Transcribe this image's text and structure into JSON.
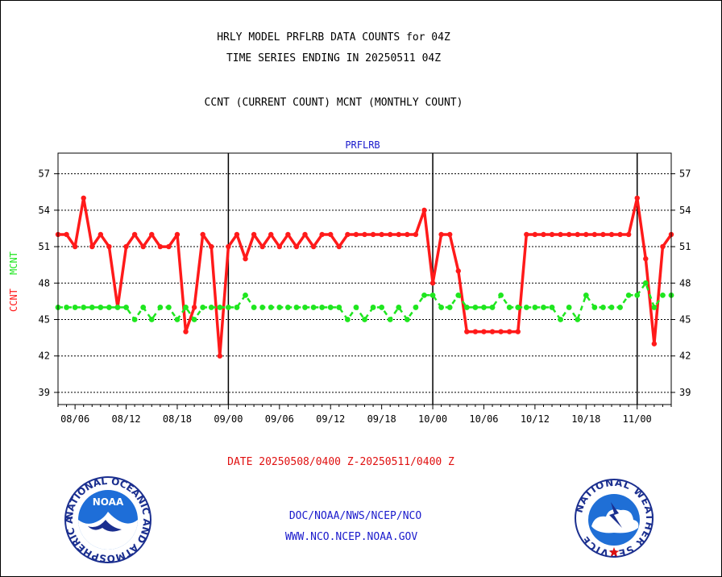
{
  "header": {
    "title_line1": "HRLY MODEL PRFLRB DATA COUNTS for 04Z",
    "title_line2": "TIME SERIES ENDING IN 20250511 04Z",
    "subtitle": "CCNT (CURRENT COUNT) MCNT (MONTHLY COUNT)"
  },
  "footer": {
    "date_range": "DATE 20250508/0400 Z-20250511/0400 Z",
    "org_line": "DOC/NOAA/NWS/NCEP/NCO",
    "url_line": "WWW.NCO.NCEP.NOAA.GOV"
  },
  "logos": {
    "noaa_text": "NOAA",
    "noaa_ring": "NATIONAL OCEANIC AND ATMOSPHERIC ADMINISTRATION · U.S. DEPARTMENT OF COMMERCE",
    "nws_ring": "NATIONAL WEATHER SERVICE"
  },
  "colors": {
    "ccnt": "#ff1a1a",
    "mcnt": "#1fe61f",
    "plot_label": "#1a1acc",
    "footer_red": "#e01010",
    "footer_blue": "#1a1acc"
  },
  "chart_data": {
    "type": "line",
    "title": "PRFLRB",
    "ylabel_ccnt": "CCNT",
    "ylabel_mcnt": "MCNT",
    "ylim": [
      38,
      58.7
    ],
    "yticks": [
      39,
      42,
      45,
      48,
      51,
      54,
      57
    ],
    "xlim": [
      0,
      72
    ],
    "xtick_labels": [
      "08/06",
      "08/12",
      "08/18",
      "09/00",
      "09/06",
      "09/12",
      "09/18",
      "10/00",
      "10/06",
      "10/12",
      "10/18",
      "11/00"
    ],
    "xtick_hours": [
      2,
      8,
      14,
      20,
      26,
      32,
      38,
      44,
      50,
      56,
      62,
      68
    ],
    "day_boundaries": [
      20,
      44,
      68
    ],
    "grid": true,
    "series": [
      {
        "name": "CCNT",
        "x": [
          0,
          1,
          2,
          3,
          4,
          5,
          6,
          7,
          8,
          9,
          10,
          11,
          12,
          13,
          14,
          15,
          16,
          17,
          18,
          19,
          20,
          21,
          22,
          23,
          24,
          25,
          26,
          27,
          28,
          29,
          30,
          31,
          32,
          33,
          34,
          35,
          36,
          37,
          38,
          39,
          40,
          41,
          42,
          43,
          44,
          45,
          46,
          47,
          48,
          49,
          50,
          51,
          52,
          53,
          54,
          55,
          56,
          57,
          58,
          59,
          60,
          61,
          62,
          63,
          64,
          65,
          66,
          67,
          68,
          69,
          70,
          71,
          72
        ],
        "values": [
          52,
          52,
          51,
          55,
          51,
          52,
          51,
          46,
          51,
          52,
          51,
          52,
          51,
          51,
          52,
          44,
          46,
          52,
          51,
          42,
          51,
          52,
          50,
          52,
          51,
          52,
          51,
          52,
          51,
          52,
          51,
          52,
          52,
          51,
          52,
          52,
          52,
          52,
          52,
          52,
          52,
          52,
          52,
          54,
          48,
          52,
          52,
          49,
          44,
          44,
          44,
          44,
          44,
          44,
          44,
          52,
          52,
          52,
          52,
          52,
          52,
          52,
          52,
          52,
          52,
          52,
          52,
          52,
          55,
          50,
          43,
          51,
          52
        ]
      },
      {
        "name": "MCNT",
        "x": [
          0,
          1,
          2,
          3,
          4,
          5,
          6,
          7,
          8,
          9,
          10,
          11,
          12,
          13,
          14,
          15,
          16,
          17,
          18,
          19,
          20,
          21,
          22,
          23,
          24,
          25,
          26,
          27,
          28,
          29,
          30,
          31,
          32,
          33,
          34,
          35,
          36,
          37,
          38,
          39,
          40,
          41,
          42,
          43,
          44,
          45,
          46,
          47,
          48,
          49,
          50,
          51,
          52,
          53,
          54,
          55,
          56,
          57,
          58,
          59,
          60,
          61,
          62,
          63,
          64,
          65,
          66,
          67,
          68,
          69,
          70,
          71,
          72
        ],
        "values": [
          46,
          46,
          46,
          46,
          46,
          46,
          46,
          46,
          46,
          45,
          46,
          45,
          46,
          46,
          45,
          46,
          45,
          46,
          46,
          46,
          46,
          46,
          47,
          46,
          46,
          46,
          46,
          46,
          46,
          46,
          46,
          46,
          46,
          46,
          45,
          46,
          45,
          46,
          46,
          45,
          46,
          45,
          46,
          47,
          47,
          46,
          46,
          47,
          46,
          46,
          46,
          46,
          47,
          46,
          46,
          46,
          46,
          46,
          46,
          45,
          46,
          45,
          47,
          46,
          46,
          46,
          46,
          47,
          47,
          48,
          46,
          47,
          47
        ]
      }
    ]
  }
}
